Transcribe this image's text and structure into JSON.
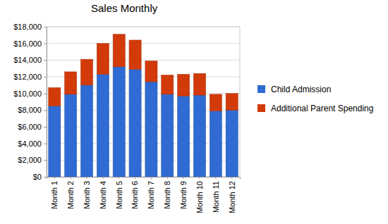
{
  "chart_data": {
    "type": "bar",
    "stacked": true,
    "title": "Sales Monthly",
    "categories": [
      "Month 1",
      "Month 2",
      "Month 3",
      "Month 4",
      "Month 5",
      "Month 6",
      "Month 7",
      "Month 8",
      "Month 9",
      "Month 10",
      "Month 11",
      "Month 12"
    ],
    "series": [
      {
        "name": "Child Admission",
        "color": "#2f6bd3",
        "values": [
          8500,
          9900,
          11000,
          12300,
          13200,
          12900,
          11400,
          9900,
          9700,
          9800,
          7900,
          8000
        ]
      },
      {
        "name": "Additional Parent Spending",
        "color": "#d23a0a",
        "values": [
          2200,
          2700,
          3100,
          3700,
          3900,
          3500,
          2500,
          2300,
          2600,
          2600,
          2000,
          2000
        ]
      }
    ],
    "ylim": [
      0,
      18000
    ],
    "yticks": [
      {
        "value": 0,
        "label": "$0"
      },
      {
        "value": 2000,
        "label": "$2,000"
      },
      {
        "value": 4000,
        "label": "$4,000"
      },
      {
        "value": 6000,
        "label": "$6,000"
      },
      {
        "value": 8000,
        "label": "$8,000"
      },
      {
        "value": 10000,
        "label": "$10,000"
      },
      {
        "value": 12000,
        "label": "$12,000"
      },
      {
        "value": 14000,
        "label": "$14,000"
      },
      {
        "value": 16000,
        "label": "$16,000"
      },
      {
        "value": 18000,
        "label": "$18,000"
      }
    ],
    "grid": true,
    "legend": "right"
  }
}
